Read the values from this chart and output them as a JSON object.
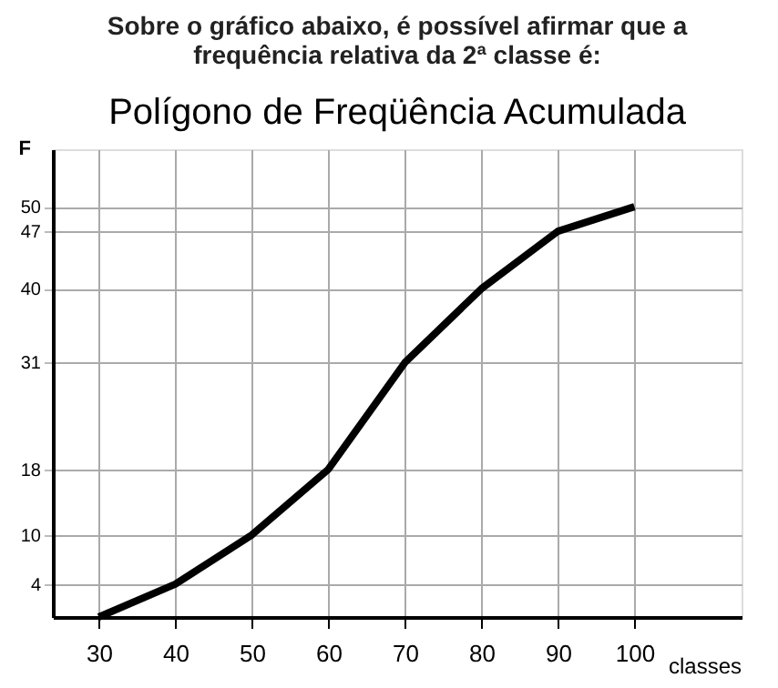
{
  "chart_data": {
    "type": "line",
    "title": "Sobre o gráfico abaixo, é possível afirmar que a frequência relativa da 2ª classe é:",
    "subtitle": "Polígono de Freqüência Acumulada",
    "xlabel": "classes",
    "ylabel": "F",
    "x": [
      30,
      40,
      50,
      60,
      70,
      80,
      90,
      100
    ],
    "series": [
      {
        "color": "#000000",
        "values": [
          0,
          4,
          10,
          18,
          31,
          40,
          47,
          50
        ]
      }
    ],
    "xlim": [
      24,
      114
    ],
    "ylim": [
      0,
      57
    ],
    "xticks": [
      30,
      40,
      50,
      60,
      70,
      80,
      90,
      100
    ],
    "yticks": [
      4,
      10,
      18,
      31,
      40,
      47,
      50
    ],
    "grid": true,
    "marker": "none",
    "line_style": "solid"
  }
}
